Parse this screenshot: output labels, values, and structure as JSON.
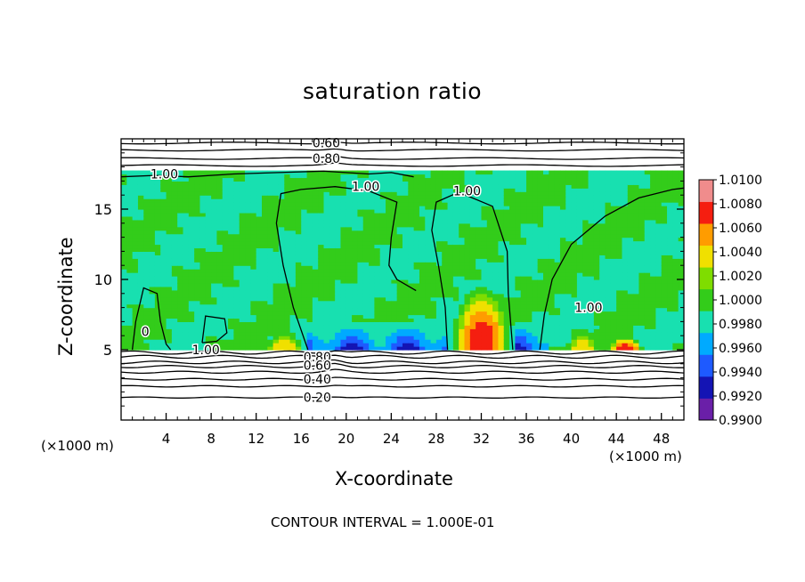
{
  "chart_data": {
    "type": "heatmap",
    "title": "saturation ratio",
    "xlabel": "X-coordinate",
    "ylabel": "Z-coordinate",
    "x_unit": "(×1000 m)",
    "footer": "CONTOUR INTERVAL = 1.000E-01",
    "xlim": [
      0,
      50
    ],
    "ylim": [
      0,
      20
    ],
    "x_ticks": [
      4,
      8,
      12,
      16,
      20,
      24,
      28,
      32,
      36,
      40,
      44,
      48
    ],
    "y_ticks": [
      5,
      10,
      15
    ],
    "colorbar": {
      "levels": [
        0.99,
        0.992,
        0.994,
        0.996,
        0.998,
        1.0,
        1.002,
        1.004,
        1.006,
        1.008,
        1.01
      ],
      "labels": [
        "0.9900",
        "0.9920",
        "0.9940",
        "0.9960",
        "0.9980",
        "1.0000",
        "1.0020",
        "1.0040",
        "1.0060",
        "1.0080",
        "1.0100"
      ],
      "colors": [
        "#6a1fa8",
        "#1414b4",
        "#1e5aff",
        "#00aaff",
        "#18e0b0",
        "#33cc1a",
        "#7fdd00",
        "#f0e000",
        "#ff9c00",
        "#f51e10",
        "#f08c8c"
      ]
    },
    "contour_labels": [
      {
        "text": "0.60",
        "x": 17.0,
        "z": 19.7
      },
      {
        "text": "0.80",
        "x": 17.0,
        "z": 18.6
      },
      {
        "text": "1.00",
        "x": 2.6,
        "z": 17.5
      },
      {
        "text": "1.00",
        "x": 20.5,
        "z": 16.6
      },
      {
        "text": "1.00",
        "x": 29.5,
        "z": 16.3
      },
      {
        "text": "1.00",
        "x": 40.3,
        "z": 8.0
      },
      {
        "text": "1.00",
        "x": 6.3,
        "z": 5.0
      },
      {
        "text": "0",
        "x": 1.8,
        "z": 6.3
      },
      {
        "text": "0.80",
        "x": 16.2,
        "z": 4.5
      },
      {
        "text": "0.60",
        "x": 16.2,
        "z": 3.9
      },
      {
        "text": "0.40",
        "x": 16.2,
        "z": 2.9
      },
      {
        "text": "0.20",
        "x": 16.2,
        "z": 1.6
      }
    ],
    "features": [
      {
        "kind": "supersaturated-core",
        "x_center": 32.0,
        "x_halfwidth": 2.6,
        "z_top": 9.5,
        "peak": 1.01
      },
      {
        "kind": "supersaturated-core",
        "x_center": 14.5,
        "x_halfwidth": 1.6,
        "z_top": 6.3,
        "peak": 1.006
      },
      {
        "kind": "supersaturated-core",
        "x_center": 41.0,
        "x_halfwidth": 1.4,
        "z_top": 6.2,
        "peak": 1.006
      },
      {
        "kind": "supersaturated-core",
        "x_center": 44.8,
        "x_halfwidth": 1.6,
        "z_top": 5.9,
        "peak": 1.01
      },
      {
        "kind": "subsaturated-band",
        "x_start": 16.0,
        "x_end": 38.0,
        "z_bottom": 5.0,
        "z_top": 7.0,
        "min": 0.992
      }
    ],
    "cloud_layer": {
      "z_bottom": 5.0,
      "z_top": 17.8,
      "background": 1.0
    }
  }
}
